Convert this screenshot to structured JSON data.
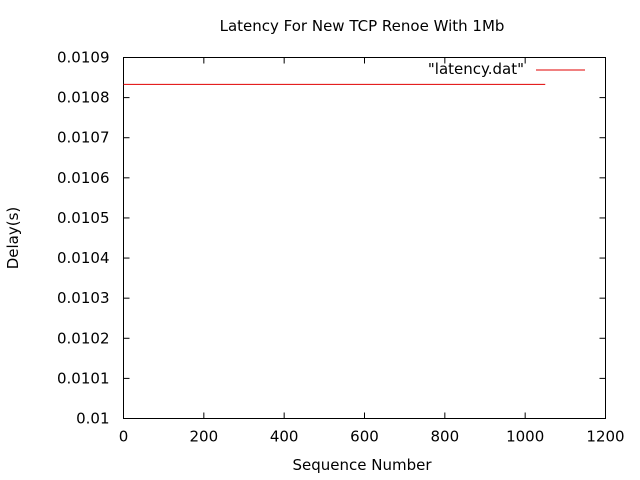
{
  "chart_data": {
    "type": "line",
    "title": "Latency For New TCP Renoe With 1Mb",
    "xlabel": "Sequence Number",
    "ylabel": "Delay(s)",
    "xlim": [
      0,
      1200
    ],
    "ylim": [
      0.01,
      0.0109
    ],
    "x_ticks": [
      "0",
      "200",
      "400",
      "600",
      "800",
      "1000",
      "1200"
    ],
    "y_ticks": [
      "0.01",
      "0.0101",
      "0.0102",
      "0.0103",
      "0.0104",
      "0.0105",
      "0.0106",
      "0.0107",
      "0.0108",
      "0.0109"
    ],
    "grid": false,
    "legend_position": "top-right",
    "series": [
      {
        "name": "\"latency.dat\"",
        "color": "#e00000",
        "x": [
          0,
          1050
        ],
        "y": [
          0.010833,
          0.010833
        ]
      }
    ]
  }
}
